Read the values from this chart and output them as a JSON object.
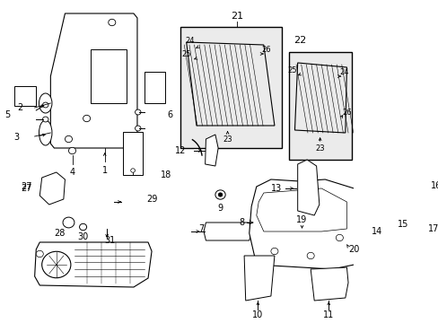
{
  "bg_color": "#ffffff",
  "fig_width": 4.89,
  "fig_height": 3.6,
  "dpi": 100,
  "lw": 0.7,
  "fs": 7,
  "fs_small": 6,
  "color": "#000000"
}
